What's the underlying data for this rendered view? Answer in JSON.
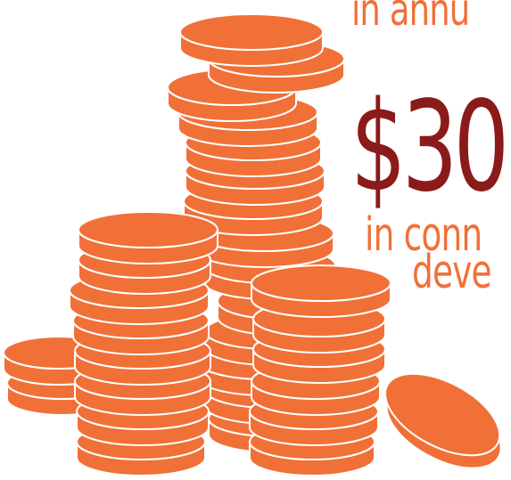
{
  "texts": {
    "line1": "in annu",
    "amount": "$30",
    "line2": "in conn",
    "line3": "deve"
  },
  "colors": {
    "background": "#ffffff",
    "coin_fill": "#f07038",
    "coin_outline": "#ffffff",
    "amount_color": "#8b1a1a",
    "caption_color": "#f07038"
  },
  "icons": {
    "stack_art": "coin-stacks-icon"
  }
}
